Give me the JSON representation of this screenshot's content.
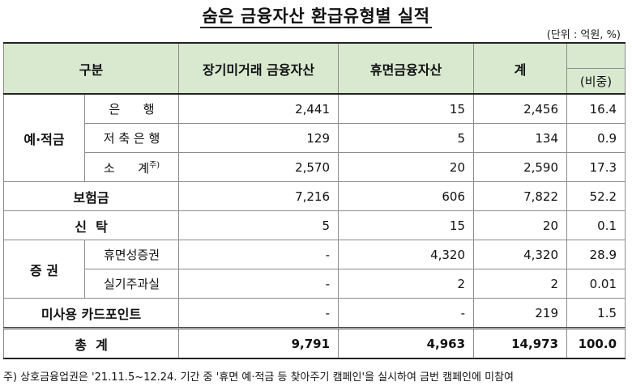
{
  "title": "숨은 금융자산 환급유형별 실적",
  "unit": "(단위 : 억원, %)",
  "headers": {
    "category": "구분",
    "col1": "장기미거래 금융자산",
    "col2": "휴면금융자산",
    "col3": "계",
    "col4": "(비중)"
  },
  "groups": {
    "deposit": "예·적금",
    "securities": "증 권"
  },
  "rows": {
    "bank": {
      "label": "은      행",
      "v1": "2,441",
      "v2": "15",
      "v3": "2,456",
      "v4": "16.4"
    },
    "savings": {
      "label": "저 축 은 행",
      "v1": "129",
      "v2": "5",
      "v3": "134",
      "v4": "0.9"
    },
    "subtotal": {
      "label": "소      계",
      "note": "주)",
      "v1": "2,570",
      "v2": "20",
      "v3": "2,590",
      "v4": "17.3"
    },
    "insurance": {
      "label": "보험금",
      "v1": "7,216",
      "v2": "606",
      "v3": "7,822",
      "v4": "52.2"
    },
    "trust": {
      "label": "신  탁",
      "v1": "5",
      "v2": "15",
      "v3": "20",
      "v4": "0.1"
    },
    "dormant_sec": {
      "label": "휴면성증권",
      "v1": "-",
      "v2": "4,320",
      "v3": "4,320",
      "v4": "28.9"
    },
    "unclaimed_stock": {
      "label": "실기주과실",
      "v1": "-",
      "v2": "2",
      "v3": "2",
      "v4": "0.01"
    },
    "card_points": {
      "label": "미사용 카드포인트",
      "v1": "-",
      "v2": "-",
      "v3": "219",
      "v4": "1.5"
    },
    "total": {
      "label": "총  계",
      "v1": "9,791",
      "v2": "4,963",
      "v3": "14,973",
      "v4": "100.0"
    }
  },
  "footnote": "주) 상호금융업권은 '21.11.5~12.24. 기간 중 '휴면 예·적금 등 찾아주기 캠페인'을 실시하여 금번 캠페인에 미참여"
}
